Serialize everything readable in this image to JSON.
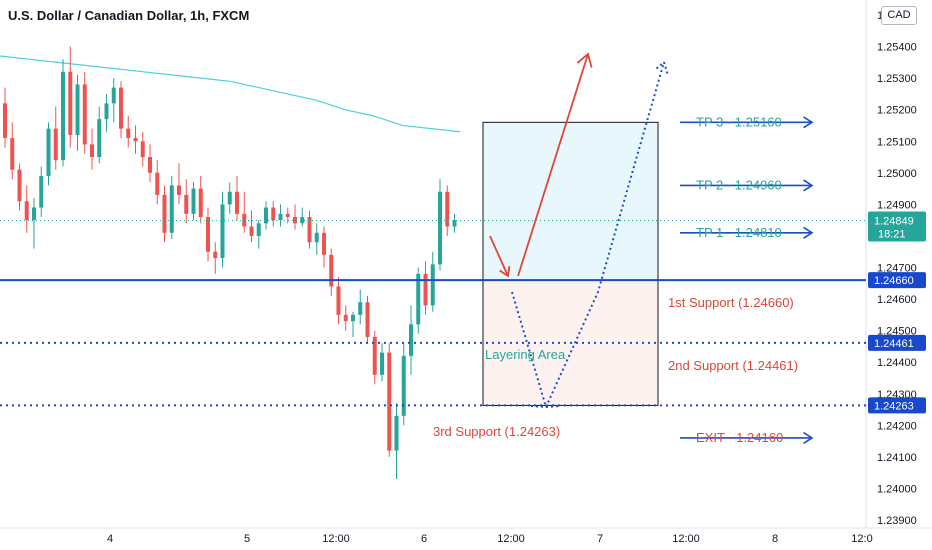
{
  "header": {
    "title": "U.S. Dollar / Canadian Dollar, 1h, FXCM",
    "currency_button": "CAD"
  },
  "colors": {
    "bull": "#26a69a",
    "bear": "#ef5350",
    "resistance_line": "#1848cc",
    "label_bg": "#1848cc",
    "price_label_bg": "#26a69a",
    "ma_line": "#4dd0e1",
    "tp_text": "#26a69a",
    "tp_arrow": "#1a4fc4",
    "support_text": "#e0453a",
    "exit_text": "#e0453a",
    "up_arrow": "#e0453a",
    "dotted_arrow": "#1a4fc4",
    "buy_zone_fill": "#e8f7fb",
    "sl_zone_fill": "#fdf2f0"
  },
  "chart_data": {
    "type": "candlestick",
    "symbol": "U.S. Dollar / Canadian Dollar",
    "timeframe": "1h",
    "source": "FXCM",
    "y_axis": {
      "unit": "CAD",
      "range": [
        1.2388,
        1.2562
      ],
      "tick_labels": [
        "1.25500",
        "1.25400",
        "1.25300",
        "1.25200",
        "1.25100",
        "1.25000",
        "1.24900",
        "1.24800",
        "1.24700",
        "1.24600",
        "1.24500",
        "1.24400",
        "1.24300",
        "1.24200",
        "1.24100",
        "1.24000",
        "1.23900"
      ]
    },
    "x_axis": {
      "tick_labels": [
        "4",
        "5",
        "12:00",
        "6",
        "12:00",
        "7",
        "12:00",
        "8",
        "12:0"
      ]
    },
    "current_price": {
      "value": "1.24849",
      "countdown": "18:21"
    },
    "candles": [
      {
        "o": 1.2522,
        "h": 1.2527,
        "l": 1.2508,
        "c": 1.2511
      },
      {
        "o": 1.2511,
        "h": 1.2516,
        "l": 1.2498,
        "c": 1.2501
      },
      {
        "o": 1.2501,
        "h": 1.2503,
        "l": 1.2488,
        "c": 1.2491
      },
      {
        "o": 1.2491,
        "h": 1.2496,
        "l": 1.2481,
        "c": 1.2485
      },
      {
        "o": 1.2485,
        "h": 1.2492,
        "l": 1.2476,
        "c": 1.2489
      },
      {
        "o": 1.2489,
        "h": 1.2502,
        "l": 1.2486,
        "c": 1.2499
      },
      {
        "o": 1.2499,
        "h": 1.2516,
        "l": 1.2496,
        "c": 1.2514
      },
      {
        "o": 1.2514,
        "h": 1.2521,
        "l": 1.2501,
        "c": 1.2504
      },
      {
        "o": 1.2504,
        "h": 1.2536,
        "l": 1.2502,
        "c": 1.2532
      },
      {
        "o": 1.2532,
        "h": 1.254,
        "l": 1.2508,
        "c": 1.2512
      },
      {
        "o": 1.2512,
        "h": 1.2531,
        "l": 1.2507,
        "c": 1.2528
      },
      {
        "o": 1.2528,
        "h": 1.2532,
        "l": 1.2506,
        "c": 1.2509
      },
      {
        "o": 1.2509,
        "h": 1.2514,
        "l": 1.2501,
        "c": 1.2505
      },
      {
        "o": 1.2505,
        "h": 1.2521,
        "l": 1.2503,
        "c": 1.2517
      },
      {
        "o": 1.2517,
        "h": 1.2525,
        "l": 1.2513,
        "c": 1.2522
      },
      {
        "o": 1.2522,
        "h": 1.253,
        "l": 1.2516,
        "c": 1.2527
      },
      {
        "o": 1.2527,
        "h": 1.2529,
        "l": 1.2511,
        "c": 1.2514
      },
      {
        "o": 1.2514,
        "h": 1.2518,
        "l": 1.2508,
        "c": 1.2511
      },
      {
        "o": 1.2511,
        "h": 1.2515,
        "l": 1.2506,
        "c": 1.251
      },
      {
        "o": 1.251,
        "h": 1.2513,
        "l": 1.2502,
        "c": 1.2505
      },
      {
        "o": 1.2505,
        "h": 1.2509,
        "l": 1.2497,
        "c": 1.25
      },
      {
        "o": 1.25,
        "h": 1.2504,
        "l": 1.249,
        "c": 1.2493
      },
      {
        "o": 1.2493,
        "h": 1.2496,
        "l": 1.2478,
        "c": 1.2481
      },
      {
        "o": 1.2481,
        "h": 1.2499,
        "l": 1.2479,
        "c": 1.2496
      },
      {
        "o": 1.2496,
        "h": 1.2503,
        "l": 1.249,
        "c": 1.2493
      },
      {
        "o": 1.2493,
        "h": 1.2498,
        "l": 1.2484,
        "c": 1.2487
      },
      {
        "o": 1.2487,
        "h": 1.2497,
        "l": 1.2485,
        "c": 1.2495
      },
      {
        "o": 1.2495,
        "h": 1.2499,
        "l": 1.2484,
        "c": 1.2486
      },
      {
        "o": 1.2486,
        "h": 1.2489,
        "l": 1.2472,
        "c": 1.2475
      },
      {
        "o": 1.2475,
        "h": 1.2478,
        "l": 1.2468,
        "c": 1.2473
      },
      {
        "o": 1.2473,
        "h": 1.2494,
        "l": 1.247,
        "c": 1.249
      },
      {
        "o": 1.249,
        "h": 1.2497,
        "l": 1.2487,
        "c": 1.2494
      },
      {
        "o": 1.2494,
        "h": 1.2499,
        "l": 1.2485,
        "c": 1.2487
      },
      {
        "o": 1.2487,
        "h": 1.2494,
        "l": 1.2481,
        "c": 1.2483
      },
      {
        "o": 1.2483,
        "h": 1.2488,
        "l": 1.2478,
        "c": 1.248
      },
      {
        "o": 1.248,
        "h": 1.2485,
        "l": 1.2476,
        "c": 1.2484
      },
      {
        "o": 1.2484,
        "h": 1.2491,
        "l": 1.2482,
        "c": 1.2489
      },
      {
        "o": 1.2489,
        "h": 1.2491,
        "l": 1.2483,
        "c": 1.2485
      },
      {
        "o": 1.2485,
        "h": 1.249,
        "l": 1.2483,
        "c": 1.2487
      },
      {
        "o": 1.2487,
        "h": 1.2489,
        "l": 1.2484,
        "c": 1.2486
      },
      {
        "o": 1.2486,
        "h": 1.249,
        "l": 1.2482,
        "c": 1.2484
      },
      {
        "o": 1.2484,
        "h": 1.2489,
        "l": 1.2483,
        "c": 1.2486
      },
      {
        "o": 1.2486,
        "h": 1.2488,
        "l": 1.2476,
        "c": 1.2478
      },
      {
        "o": 1.2478,
        "h": 1.2484,
        "l": 1.2474,
        "c": 1.2481
      },
      {
        "o": 1.2481,
        "h": 1.2483,
        "l": 1.247,
        "c": 1.2474
      },
      {
        "o": 1.2474,
        "h": 1.2476,
        "l": 1.2461,
        "c": 1.2464
      },
      {
        "o": 1.2464,
        "h": 1.2467,
        "l": 1.2452,
        "c": 1.2455
      },
      {
        "o": 1.2455,
        "h": 1.2458,
        "l": 1.245,
        "c": 1.2453
      },
      {
        "o": 1.2453,
        "h": 1.2456,
        "l": 1.2448,
        "c": 1.2455
      },
      {
        "o": 1.2455,
        "h": 1.2463,
        "l": 1.2452,
        "c": 1.2459
      },
      {
        "o": 1.2459,
        "h": 1.2461,
        "l": 1.2446,
        "c": 1.2448
      },
      {
        "o": 1.2448,
        "h": 1.245,
        "l": 1.2433,
        "c": 1.2436
      },
      {
        "o": 1.2436,
        "h": 1.2446,
        "l": 1.2434,
        "c": 1.2443
      },
      {
        "o": 1.2443,
        "h": 1.2446,
        "l": 1.241,
        "c": 1.2412
      },
      {
        "o": 1.2412,
        "h": 1.2427,
        "l": 1.2403,
        "c": 1.2423
      },
      {
        "o": 1.2423,
        "h": 1.2446,
        "l": 1.242,
        "c": 1.2442
      },
      {
        "o": 1.2442,
        "h": 1.2458,
        "l": 1.2436,
        "c": 1.2452
      },
      {
        "o": 1.2452,
        "h": 1.247,
        "l": 1.2449,
        "c": 1.2468
      },
      {
        "o": 1.2468,
        "h": 1.2472,
        "l": 1.2455,
        "c": 1.2458
      },
      {
        "o": 1.2458,
        "h": 1.2475,
        "l": 1.2456,
        "c": 1.2471
      },
      {
        "o": 1.2471,
        "h": 1.2498,
        "l": 1.2469,
        "c": 1.2494
      },
      {
        "o": 1.2494,
        "h": 1.2496,
        "l": 1.248,
        "c": 1.2483
      },
      {
        "o": 1.2483,
        "h": 1.2487,
        "l": 1.2481,
        "c": 1.2485
      }
    ],
    "moving_average": [
      1.2537,
      1.2536,
      1.2535,
      1.2534,
      1.2533,
      1.2532,
      1.2531,
      1.253,
      1.2529,
      1.2527,
      1.2525,
      1.2523,
      1.252,
      1.2518,
      1.2515,
      1.2514,
      1.2513
    ],
    "horizontal_lines": [
      {
        "name": "1st Support",
        "value": 1.2466,
        "style": "solid",
        "label": "1.24660"
      },
      {
        "name": "2nd Support",
        "value": 1.24461,
        "style": "dotted",
        "label": "1.24461"
      },
      {
        "name": "3rd Support",
        "value": 1.24263,
        "style": "dotted",
        "label": "1.24263"
      }
    ],
    "annotations": {
      "targets": [
        {
          "label": "TP 3 - 1.25160",
          "value": 1.2516
        },
        {
          "label": "TP 2 - 1.24960",
          "value": 1.2496
        },
        {
          "label": "TP 1 - 1.24810",
          "value": 1.2481
        }
      ],
      "exit": {
        "label": "EXIT - 1.24160",
        "value": 1.2416
      },
      "supports": [
        {
          "label": "1st Support (1.24660)"
        },
        {
          "label": "2nd Support (1.24461)"
        },
        {
          "label": "3rd Support (1.24263)"
        }
      ],
      "layering_area": "Layering Area",
      "trade_box": {
        "top": 1.2516,
        "entry": 1.2466,
        "bottom": 1.24263
      }
    }
  }
}
